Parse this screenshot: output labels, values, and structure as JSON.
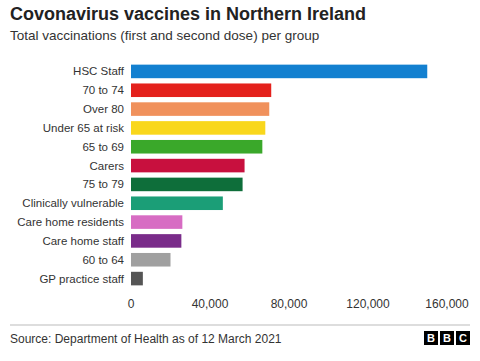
{
  "chart_data": {
    "type": "bar",
    "orientation": "horizontal",
    "title": "Covonavirus vaccines in Northern Ireland",
    "subtitle": "Total vaccinations (first and second dose) per group",
    "source": "Source: Department of Health as of 12 March 2021",
    "logo": "BBC",
    "categories": [
      "HSC Staff",
      "70 to 74",
      "Over 80",
      "Under 65 at risk",
      "65 to 69",
      "Carers",
      "75 to 79",
      "Clinically vulnerable",
      "Care home residents",
      "Care home staff",
      "60 to 64",
      "GP practice staff"
    ],
    "values": [
      150000,
      71000,
      70000,
      68000,
      66500,
      57500,
      56500,
      46500,
      26000,
      25500,
      20000,
      6000
    ],
    "colors": [
      "#1380d0",
      "#e4211c",
      "#f0915c",
      "#f9d71c",
      "#3aa82a",
      "#c8103e",
      "#0e6e3a",
      "#1b9e77",
      "#d76cc3",
      "#7a2c8a",
      "#a0a0a0",
      "#555555"
    ],
    "xlim": [
      0,
      160000
    ],
    "xticks": [
      0,
      {
        "value": 40000,
        "label": "40,000"
      },
      {
        "value": 80000,
        "label": "80,000"
      },
      {
        "value": 120000,
        "label": "120,000"
      },
      {
        "value": 160000,
        "label": "160,000"
      }
    ],
    "grid": false
  }
}
